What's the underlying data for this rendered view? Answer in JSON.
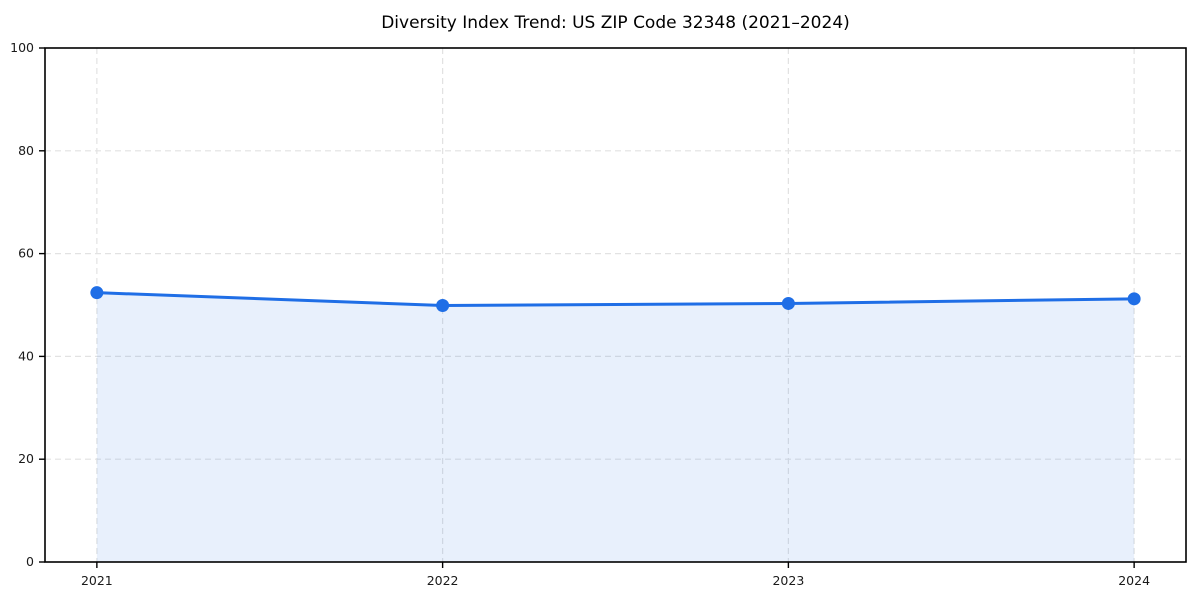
{
  "figure": {
    "background": "#ffffff"
  },
  "chart_data": {
    "type": "line",
    "title": "Diversity Index Trend: US ZIP Code 32348 (2021–2024)",
    "categories": [
      "2021",
      "2022",
      "2023",
      "2024"
    ],
    "values": [
      52.4,
      49.9,
      50.3,
      51.2
    ],
    "xlabel": "",
    "ylabel": "",
    "ylim": [
      0,
      100
    ],
    "yticks": [
      0,
      20,
      40,
      60,
      80,
      100
    ],
    "grid": "dashed-both",
    "legend": "none",
    "area_fill_to_zero": true,
    "marker": "circle",
    "colors": {
      "line": "#1f6ee6",
      "marker": "#1f6ee6",
      "fill": "rgba(31, 110, 230, 0.10)",
      "grid": "#e2e2e2",
      "spine": "#000000",
      "tick_label": "#1a1a1a",
      "title": "#000000"
    }
  }
}
